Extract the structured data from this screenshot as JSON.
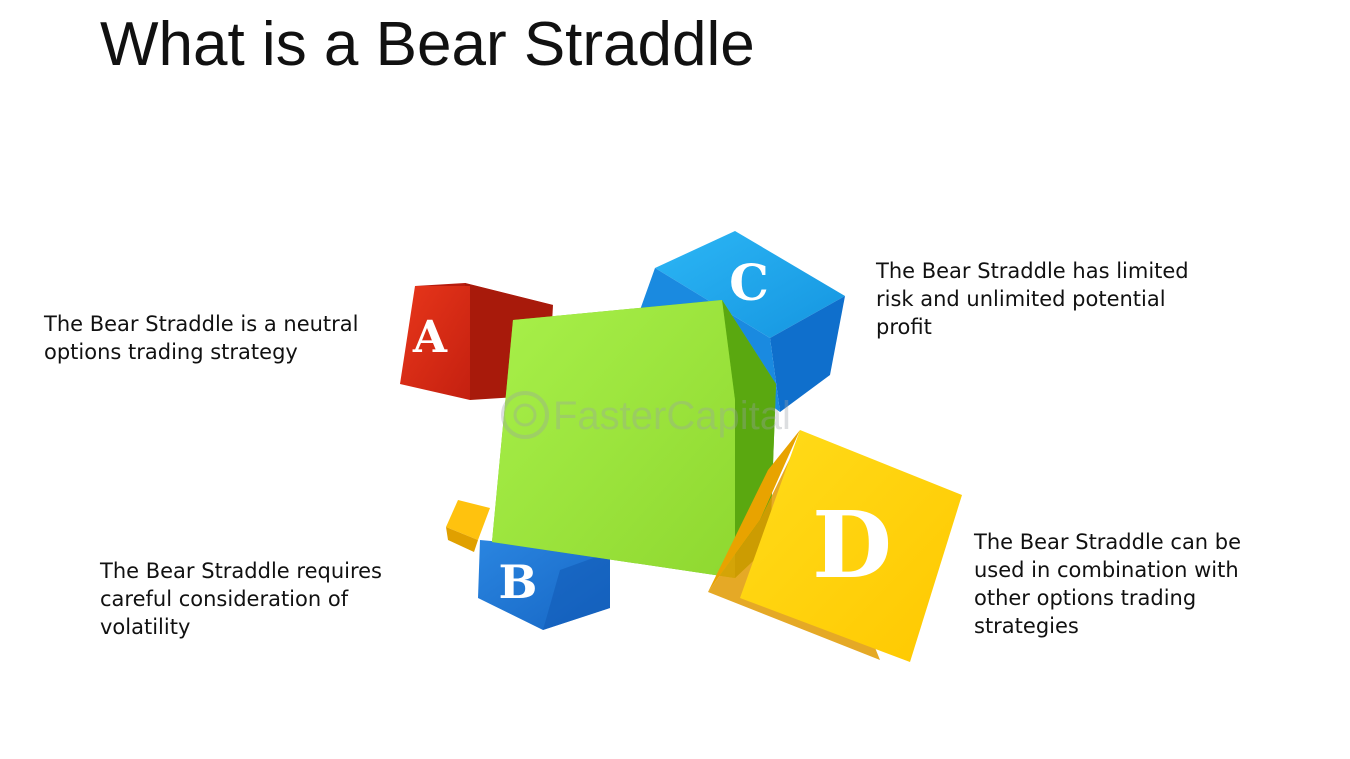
{
  "title": "What is a Bear Straddle",
  "callouts": {
    "a": "The Bear Straddle is a neutral\noptions trading strategy",
    "b": "The Bear Straddle requires\ncareful consideration of\nvolatility",
    "c": "The Bear Straddle has limited\nrisk and unlimited potential\nprofit",
    "d": "The Bear Straddle can be\nused in combination with\nother options trading\nstrategies"
  },
  "cubes": {
    "a": {
      "letter": "A",
      "color": "#d42a12"
    },
    "b": {
      "letter": "B",
      "color": "#1e73d2"
    },
    "c": {
      "letter": "C",
      "color": "#1a9fe8"
    },
    "d": {
      "letter": "D",
      "color": "#ffd100"
    },
    "center": {
      "color": "#9be63c"
    },
    "small": {
      "color": "#ffc20e"
    }
  },
  "watermark": "FasterCapital"
}
